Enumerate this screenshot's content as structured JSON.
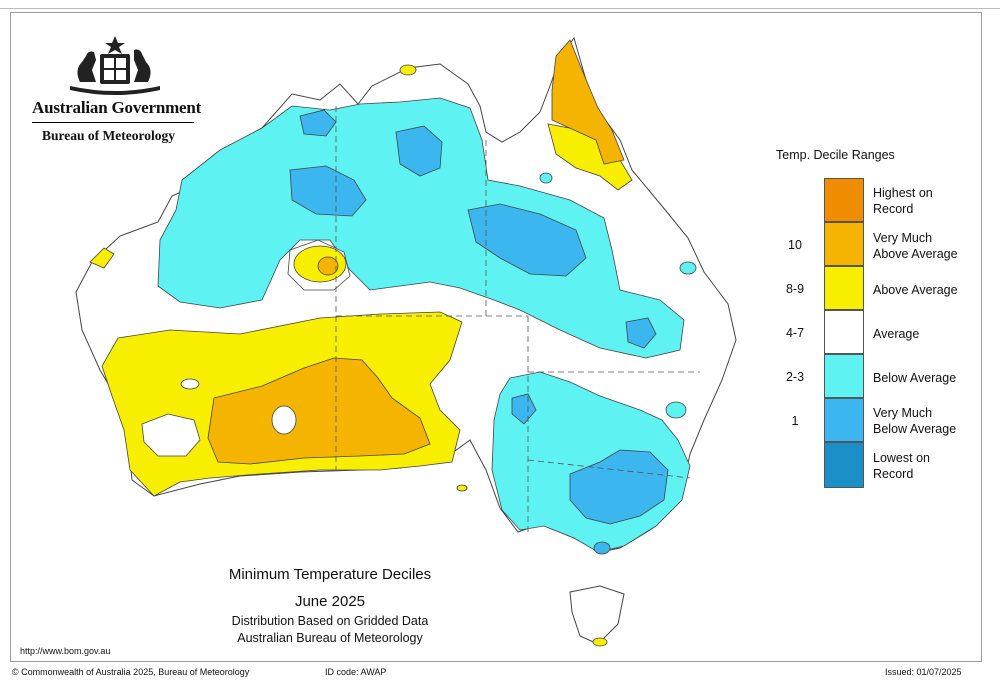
{
  "header": {
    "government": "Australian Government",
    "bureau": "Bureau of Meteorology"
  },
  "map": {
    "title": "Minimum Temperature Deciles",
    "period": "June 2025",
    "subtitle1": "Distribution Based on Gridded Data",
    "subtitle2": "Australian Bureau of Meteorology",
    "url": "http://www.bom.gov.au"
  },
  "legend": {
    "title": "Temp. Decile Ranges",
    "items": [
      {
        "code": "",
        "label1": "Highest on",
        "label2": "Record",
        "color": "#f08c00"
      },
      {
        "code": "10",
        "label1": "Very Much",
        "label2": "Above Average",
        "color": "#f5b400"
      },
      {
        "code": "8-9",
        "label1": "Above Average",
        "label2": "",
        "color": "#f7ee00"
      },
      {
        "code": "4-7",
        "label1": "Average",
        "label2": "",
        "color": "#ffffff"
      },
      {
        "code": "2-3",
        "label1": "Below Average",
        "label2": "",
        "color": "#5ff2f2"
      },
      {
        "code": "1",
        "label1": "Very Much",
        "label2": "Below Average",
        "color": "#3cb6ef"
      },
      {
        "code": "",
        "label1": "Lowest on",
        "label2": "Record",
        "color": "#1a8fc8"
      }
    ]
  },
  "footer": {
    "copyright": "© Commonwealth of Australia 2025, Bureau of Meteorology",
    "id_code": "ID code: AWAP",
    "issued": "Issued: 01/07/2025"
  },
  "colors": {
    "above": "#f7ee00",
    "very_much_above": "#f5b400",
    "highest": "#f08c00",
    "below": "#5ff2f2",
    "very_much_below": "#3cb6ef",
    "lowest": "#1a8fc8"
  }
}
